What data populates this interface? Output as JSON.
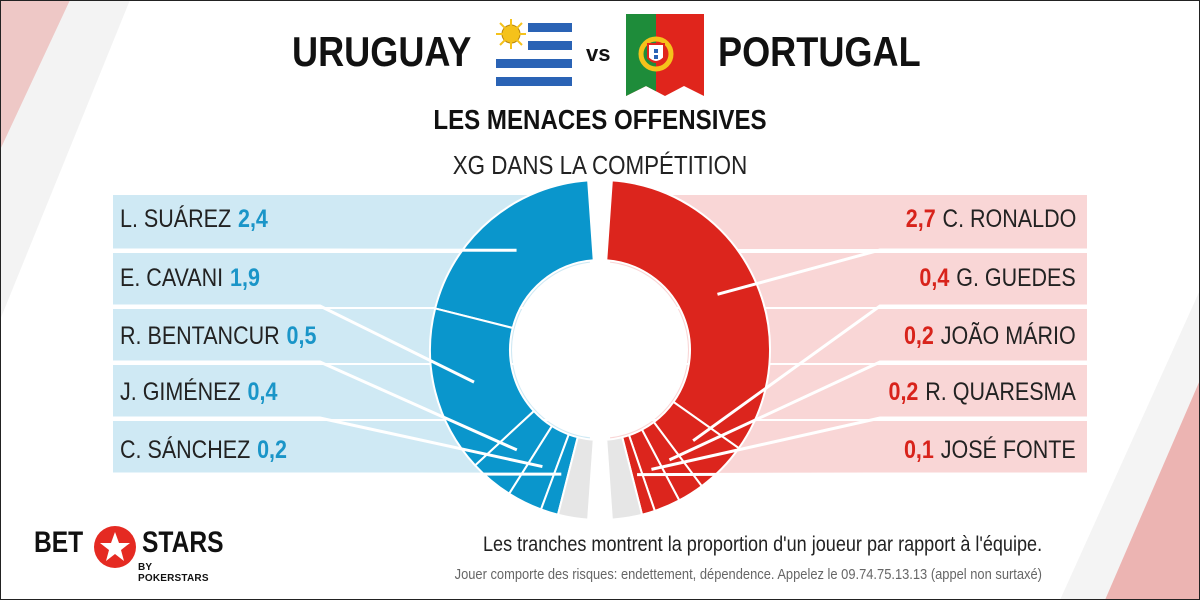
{
  "header": {
    "team_left": "URUGUAY",
    "vs": "vs",
    "team_right": "PORTUGAL",
    "title": "LES MENACES OFFENSIVES",
    "metric": "XG DANS LA COMPÉTITION"
  },
  "colors": {
    "uruguay": "#0a96cc",
    "portugal": "#dc251d",
    "uruguay_panel": "#cfe9f4",
    "portugal_panel": "#f9d6d6",
    "remainder": "#e6e6e6"
  },
  "chart_data": {
    "type": "donut",
    "title": "LES MENACES OFFENSIVES",
    "subtitle": "XG DANS LA COMPÉTITION",
    "series": [
      {
        "name": "URUGUAY",
        "team_total_fraction_shown": 0.94,
        "players": [
          {
            "name": "L. SUÁREZ",
            "value": 2.4,
            "display": "2,4"
          },
          {
            "name": "E. CAVANI",
            "value": 1.9,
            "display": "1,9"
          },
          {
            "name": "R. BENTANCUR",
            "value": 0.5,
            "display": "0,5"
          },
          {
            "name": "J. GIMÉNEZ",
            "value": 0.4,
            "display": "0,4"
          },
          {
            "name": "C. SÁNCHEZ",
            "value": 0.2,
            "display": "0,2"
          }
        ]
      },
      {
        "name": "PORTUGAL",
        "team_total_fraction_shown": 0.94,
        "players": [
          {
            "name": "C. RONALDO",
            "value": 2.7,
            "display": "2,7"
          },
          {
            "name": "G. GUEDES",
            "value": 0.4,
            "display": "0,4"
          },
          {
            "name": "JOÃO MÁRIO",
            "value": 0.2,
            "display": "0,2"
          },
          {
            "name": "R. QUARESMA",
            "value": 0.2,
            "display": "0,2"
          },
          {
            "name": "JOSÉ FONTE",
            "value": 0.1,
            "display": "0,1"
          }
        ]
      }
    ]
  },
  "footer": {
    "logo_bet": "BET",
    "logo_stars": "STARS",
    "logo_sub": "BY POKERSTARS",
    "caption": "Les tranches montrent la proportion d'un joueur par rapport à l'équipe.",
    "disclaimer": "Jouer comporte des risques: endettement, dépendence. Appelez le 09.74.75.13.13 (appel non surtaxé)"
  }
}
